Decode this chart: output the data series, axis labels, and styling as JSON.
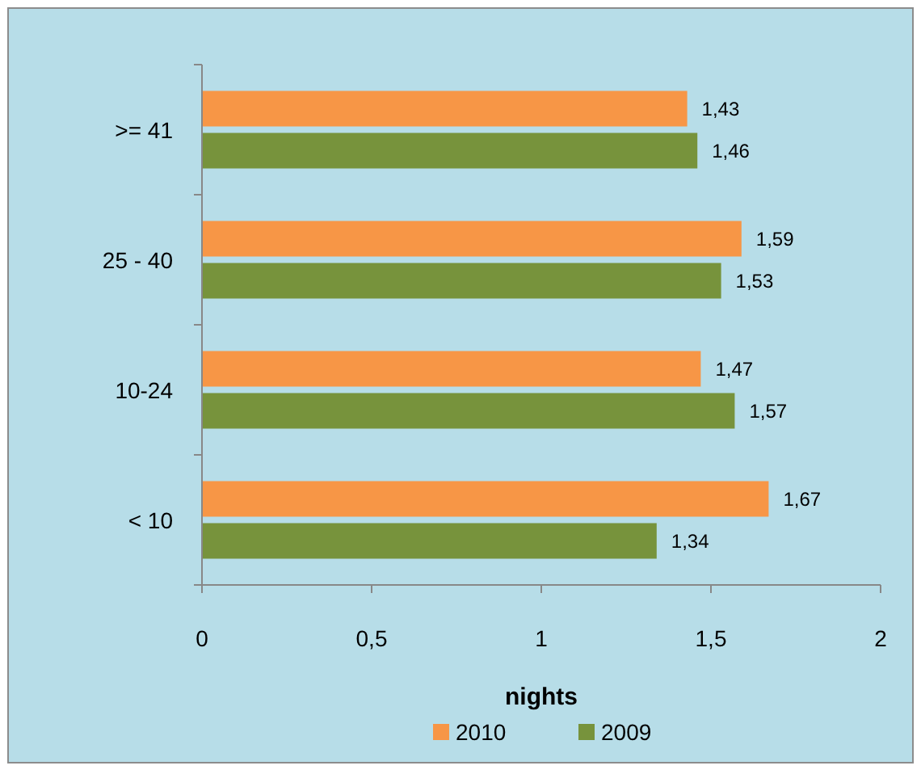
{
  "chart_data": {
    "type": "bar",
    "orientation": "horizontal",
    "xlabel": "nights",
    "categories": [
      ">= 41",
      "25 - 40",
      "10-24",
      "< 10"
    ],
    "series": [
      {
        "name": "2010",
        "color": "#f79646",
        "values": [
          1.43,
          1.59,
          1.47,
          1.67
        ],
        "value_labels": [
          "1,43",
          "1,59",
          "1,47",
          "1,67"
        ]
      },
      {
        "name": "2009",
        "color": "#77933c",
        "values": [
          1.46,
          1.53,
          1.57,
          1.34
        ],
        "value_labels": [
          "1,46",
          "1,53",
          "1,57",
          "1,34"
        ]
      }
    ],
    "xlim": [
      0,
      2
    ],
    "xticks": [
      0,
      {
        "value": 0.5,
        "label": "0,5"
      },
      1,
      {
        "value": 1.5,
        "label": "1,5"
      },
      2
    ],
    "legend": "bottom",
    "grid": false
  }
}
